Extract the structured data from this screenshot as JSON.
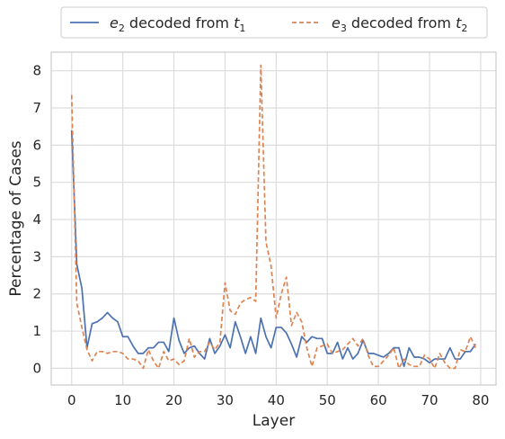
{
  "chart_data": {
    "type": "line",
    "xlabel": "Layer",
    "ylabel": "Percentage of Cases",
    "xlim": [
      -4,
      83
    ],
    "ylim": [
      -0.45,
      8.5
    ],
    "xticks": [
      0,
      10,
      20,
      30,
      40,
      50,
      60,
      70,
      80
    ],
    "yticks": [
      0,
      1,
      2,
      3,
      4,
      5,
      6,
      7,
      8
    ],
    "grid": true,
    "legend_position": "top-center",
    "x": [
      0,
      1,
      2,
      3,
      4,
      5,
      6,
      7,
      8,
      9,
      10,
      11,
      12,
      13,
      14,
      15,
      16,
      17,
      18,
      19,
      20,
      21,
      22,
      23,
      24,
      25,
      26,
      27,
      28,
      29,
      30,
      31,
      32,
      33,
      34,
      35,
      36,
      37,
      38,
      39,
      40,
      41,
      42,
      43,
      44,
      45,
      46,
      47,
      48,
      49,
      50,
      51,
      52,
      53,
      54,
      55,
      56,
      57,
      58,
      59,
      60,
      61,
      62,
      63,
      64,
      65,
      66,
      67,
      68,
      69,
      70,
      71,
      72,
      73,
      74,
      75,
      76,
      77,
      78,
      79
    ],
    "series": [
      {
        "name": "e₂ decoded from t₁",
        "legend_main": "e",
        "legend_sub": "2",
        "legend_mid": " decoded from ",
        "legend_main2": "t",
        "legend_sub2": "1",
        "color": "#4c72b0",
        "dash": "solid",
        "values": [
          6.4,
          2.8,
          2.15,
          0.55,
          1.2,
          1.25,
          1.35,
          1.5,
          1.35,
          1.25,
          0.85,
          0.85,
          0.6,
          0.4,
          0.4,
          0.55,
          0.55,
          0.7,
          0.7,
          0.45,
          1.35,
          0.75,
          0.4,
          0.55,
          0.6,
          0.4,
          0.25,
          0.8,
          0.4,
          0.6,
          0.9,
          0.55,
          1.25,
          0.85,
          0.4,
          0.85,
          0.4,
          1.35,
          0.85,
          0.55,
          1.1,
          1.1,
          0.95,
          0.65,
          0.3,
          0.85,
          0.7,
          0.85,
          0.8,
          0.8,
          0.4,
          0.4,
          0.7,
          0.25,
          0.55,
          0.25,
          0.4,
          0.75,
          0.4,
          0.4,
          0.35,
          0.3,
          0.4,
          0.55,
          0.55,
          0.05,
          0.55,
          0.3,
          0.3,
          0.25,
          0.15,
          0.25,
          0.25,
          0.25,
          0.55,
          0.25,
          0.25,
          0.45,
          0.45,
          0.65
        ]
      },
      {
        "name": "e₃ decoded from t₂",
        "legend_main": "e",
        "legend_sub": "3",
        "legend_mid": " decoded from ",
        "legend_main2": "t",
        "legend_sub2": "2",
        "color": "#dd8452",
        "dash": "dashed",
        "values": [
          7.35,
          1.75,
          1.1,
          0.5,
          0.2,
          0.45,
          0.45,
          0.4,
          0.45,
          0.45,
          0.4,
          0.25,
          0.25,
          0.2,
          0.0,
          0.5,
          0.2,
          0.0,
          0.45,
          0.2,
          0.25,
          0.1,
          0.2,
          0.8,
          0.3,
          0.45,
          0.45,
          0.7,
          0.5,
          0.7,
          2.3,
          1.55,
          1.45,
          1.75,
          1.85,
          1.9,
          1.8,
          8.15,
          3.4,
          2.75,
          1.35,
          2.0,
          2.45,
          1.15,
          1.5,
          1.25,
          0.55,
          0.05,
          0.55,
          0.6,
          0.65,
          0.4,
          0.45,
          0.5,
          0.65,
          0.8,
          0.6,
          0.8,
          0.35,
          0.05,
          0.05,
          0.2,
          0.35,
          0.55,
          0.0,
          0.25,
          0.1,
          0.05,
          0.05,
          0.35,
          0.25,
          0.0,
          0.4,
          0.15,
          0.0,
          0.0,
          0.5,
          0.45,
          0.85,
          0.55
        ]
      }
    ]
  }
}
